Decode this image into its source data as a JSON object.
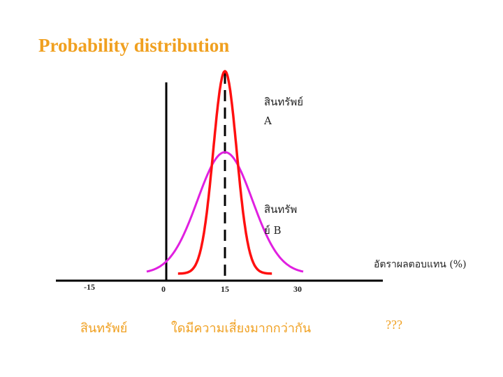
{
  "chart_data": {
    "type": "line",
    "title": "Probability distribution",
    "xlabel": "อัตราผลตอบแทน (%)",
    "ylabel": "",
    "xlim": [
      -15,
      40
    ],
    "x_ticks": [
      "-15",
      "0",
      "15",
      "30"
    ],
    "mean_line_x": 15,
    "series": [
      {
        "name": "สินทรัพย์ A",
        "color": "#ff1010",
        "mean": 15,
        "sd": 3.0,
        "peak": 1.0,
        "x_range": [
          3,
          27
        ]
      },
      {
        "name": "สินทรัพย์ B",
        "color": "#e020e0",
        "mean": 15,
        "sd": 7.0,
        "peak": 0.6,
        "x_range": [
          -5,
          35
        ]
      }
    ],
    "annotations": {
      "asset_a_line1": "สินทรัพย์",
      "asset_a_line2": "A",
      "asset_b_line1": "สินทรัพ",
      "asset_b_line2": "ย์ B"
    },
    "bottom_labels": [
      "สินทรัพย์",
      "ใดมีความเสี่ยงมากกว่ากัน",
      "???"
    ]
  },
  "colors": {
    "title": "#f0a020",
    "axis": "#000000",
    "asset_a": "#ff1010",
    "asset_b": "#e020e0"
  }
}
